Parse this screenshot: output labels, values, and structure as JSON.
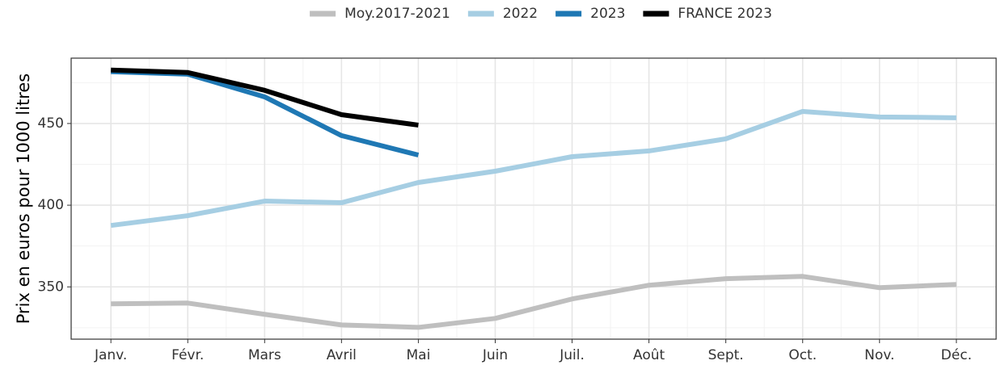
{
  "chart_data": {
    "type": "line",
    "y_label": "Prix en euros pour 1000 litres",
    "categories": [
      "Janv.",
      "Févr.",
      "Mars",
      "Avril",
      "Mai",
      "Juin",
      "Juil.",
      "Août",
      "Sept.",
      "Oct.",
      "Nov.",
      "Déc."
    ],
    "series": [
      {
        "name": "Moy.2017-2021",
        "color": "#bfbfbf",
        "values": [
          339.6,
          340.1,
          333.2,
          326.7,
          325.2,
          330.7,
          342.6,
          351,
          355,
          356.4,
          349.5,
          351.5
        ]
      },
      {
        "name": "2022",
        "color": "#a6cee3",
        "values": [
          387.6,
          393.6,
          402.5,
          401.5,
          413.9,
          420.8,
          429.7,
          433.2,
          440.6,
          457.4,
          454,
          453.5
        ]
      },
      {
        "name": "2023",
        "color": "#1f78b4",
        "values": [
          481.7,
          480.2,
          466.3,
          442.6,
          430.7,
          null,
          null,
          null,
          null,
          null,
          null,
          null
        ]
      },
      {
        "name": "FRANCE 2023",
        "color": "#000000",
        "values": [
          482.7,
          481.2,
          470.3,
          455.4,
          449,
          null,
          null,
          null,
          null,
          null,
          null,
          null
        ]
      }
    ],
    "ylim": [
      318,
      490
    ],
    "yticks": [
      350,
      400,
      450
    ],
    "grid": true,
    "legend": "top"
  }
}
